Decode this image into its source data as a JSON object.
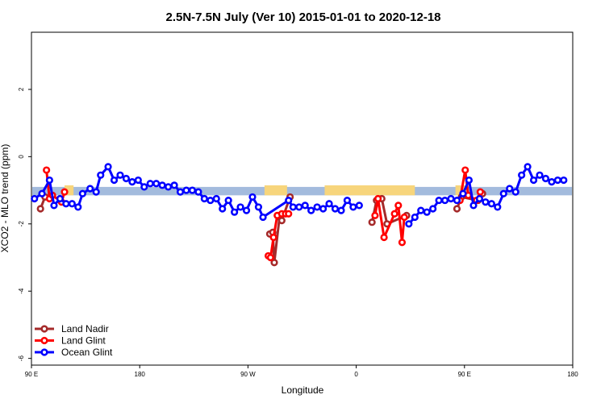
{
  "chart_data": {
    "type": "line",
    "title": "2.5N-7.5N July (Ver 10)   2015-01-01 to 2020-12-18",
    "xlabel": "Longitude",
    "ylabel": "XCO2 - MLO trend (ppm)",
    "xlim": [
      0,
      360
    ],
    "ylim": [
      -6.2,
      3.7
    ],
    "x_ticks": [
      {
        "value": 0,
        "label": "90 E"
      },
      {
        "value": 72,
        "label": "180"
      },
      {
        "value": 144,
        "label": "90 W"
      },
      {
        "value": 216,
        "label": "0"
      },
      {
        "value": 288,
        "label": "90 E"
      },
      {
        "value": 360,
        "label": "180"
      }
    ],
    "y_ticks": [
      {
        "value": -6,
        "label": "-6"
      },
      {
        "value": -4,
        "label": "-4"
      },
      {
        "value": -2,
        "label": "-2"
      },
      {
        "value": 0,
        "label": "0"
      },
      {
        "value": 2,
        "label": "2"
      }
    ],
    "grid": false,
    "legend_position": "bottom-left",
    "background_band": {
      "y_range": [
        -1.15,
        -0.9
      ],
      "ocean_color": "#a3bbdd",
      "land_color": "#f7d57c",
      "land_segments": [
        [
          22,
          28
        ],
        [
          155,
          170
        ],
        [
          195,
          255
        ],
        [
          282,
          290
        ]
      ]
    },
    "series": [
      {
        "name": "Land Nadir",
        "color": "#a52a2a",
        "points": [
          [
            6,
            -1.55
          ],
          [
            9,
            -1.2
          ],
          [
            158.5,
            -2.3
          ],
          [
            160.5,
            -2.25
          ],
          [
            161.5,
            -3.15
          ],
          [
            165,
            -1.8
          ],
          [
            166.5,
            -1.9
          ],
          [
            172,
            -1.2
          ],
          [
            226.5,
            -1.95
          ],
          [
            229.5,
            -1.3
          ],
          [
            233,
            -1.25
          ],
          [
            236.5,
            -2.0
          ],
          [
            249.5,
            -1.75
          ],
          [
            283,
            -1.55
          ],
          [
            286,
            -1.2
          ],
          [
            297,
            -1.3
          ],
          [
            300,
            -1.1
          ]
        ]
      },
      {
        "name": "Land Glint",
        "color": "#ff0000",
        "points": [
          [
            10,
            -0.4
          ],
          [
            12,
            -1.25
          ],
          [
            14,
            -1.15
          ],
          [
            20,
            -1.35
          ],
          [
            22,
            -1.05
          ],
          [
            157.5,
            -2.95
          ],
          [
            159,
            -3.0
          ],
          [
            161,
            -2.4
          ],
          [
            163.5,
            -1.75
          ],
          [
            166.5,
            -1.7
          ],
          [
            169,
            -1.7
          ],
          [
            171,
            -1.7
          ],
          [
            228.5,
            -1.75
          ],
          [
            230.5,
            -1.25
          ],
          [
            234.5,
            -2.4
          ],
          [
            241.5,
            -1.7
          ],
          [
            244,
            -1.45
          ],
          [
            246.5,
            -2.55
          ],
          [
            248,
            -1.8
          ],
          [
            285,
            -1.3
          ],
          [
            288.5,
            -0.4
          ],
          [
            290.5,
            -1.15
          ],
          [
            296,
            -1.3
          ],
          [
            298.5,
            -1.05
          ]
        ]
      },
      {
        "name": "Ocean Glint",
        "color": "#0000ff",
        "points": [
          [
            2,
            -1.25
          ],
          [
            7,
            -1.1
          ],
          [
            12,
            -0.7
          ],
          [
            15,
            -1.45
          ],
          [
            19,
            -1.25
          ],
          [
            23,
            -1.4
          ],
          [
            27,
            -1.4
          ],
          [
            31,
            -1.5
          ],
          [
            34,
            -1.1
          ],
          [
            39,
            -0.95
          ],
          [
            43,
            -1.05
          ],
          [
            46,
            -0.55
          ],
          [
            51,
            -0.3
          ],
          [
            55,
            -0.7
          ],
          [
            59,
            -0.55
          ],
          [
            63,
            -0.65
          ],
          [
            67,
            -0.75
          ],
          [
            71,
            -0.7
          ],
          [
            75,
            -0.9
          ],
          [
            79,
            -0.8
          ],
          [
            83,
            -0.8
          ],
          [
            87,
            -0.85
          ],
          [
            91,
            -0.9
          ],
          [
            95,
            -0.85
          ],
          [
            99,
            -1.05
          ],
          [
            103,
            -1.0
          ],
          [
            107,
            -1.0
          ],
          [
            111,
            -1.05
          ],
          [
            115,
            -1.25
          ],
          [
            119,
            -1.3
          ],
          [
            123,
            -1.25
          ],
          [
            127,
            -1.55
          ],
          [
            131,
            -1.3
          ],
          [
            135,
            -1.65
          ],
          [
            139,
            -1.5
          ],
          [
            143,
            -1.6
          ],
          [
            147,
            -1.2
          ],
          [
            151,
            -1.5
          ],
          [
            154,
            -1.8
          ],
          [
            171,
            -1.3
          ],
          [
            174,
            -1.5
          ],
          [
            178,
            -1.5
          ],
          [
            182,
            -1.45
          ],
          [
            186,
            -1.6
          ],
          [
            190,
            -1.5
          ],
          [
            194,
            -1.55
          ],
          [
            198,
            -1.4
          ],
          [
            202,
            -1.55
          ],
          [
            206,
            -1.6
          ],
          [
            210,
            -1.3
          ],
          [
            214,
            -1.5
          ],
          [
            218,
            -1.45
          ],
          [
            251,
            -2.0
          ],
          [
            255,
            -1.8
          ],
          [
            259,
            -1.6
          ],
          [
            263,
            -1.65
          ],
          [
            267,
            -1.55
          ],
          [
            271,
            -1.3
          ],
          [
            275,
            -1.3
          ],
          [
            279,
            -1.25
          ],
          [
            283,
            -1.3
          ],
          [
            287,
            -1.1
          ],
          [
            291,
            -0.7
          ],
          [
            294,
            -1.45
          ],
          [
            298,
            -1.25
          ],
          [
            302,
            -1.35
          ],
          [
            306,
            -1.4
          ],
          [
            310,
            -1.5
          ],
          [
            314,
            -1.1
          ],
          [
            318,
            -0.95
          ],
          [
            322,
            -1.05
          ],
          [
            326,
            -0.55
          ],
          [
            330,
            -0.3
          ],
          [
            334,
            -0.7
          ],
          [
            338,
            -0.55
          ],
          [
            342,
            -0.65
          ],
          [
            346,
            -0.75
          ],
          [
            350,
            -0.7
          ],
          [
            354,
            -0.7
          ]
        ]
      }
    ]
  }
}
